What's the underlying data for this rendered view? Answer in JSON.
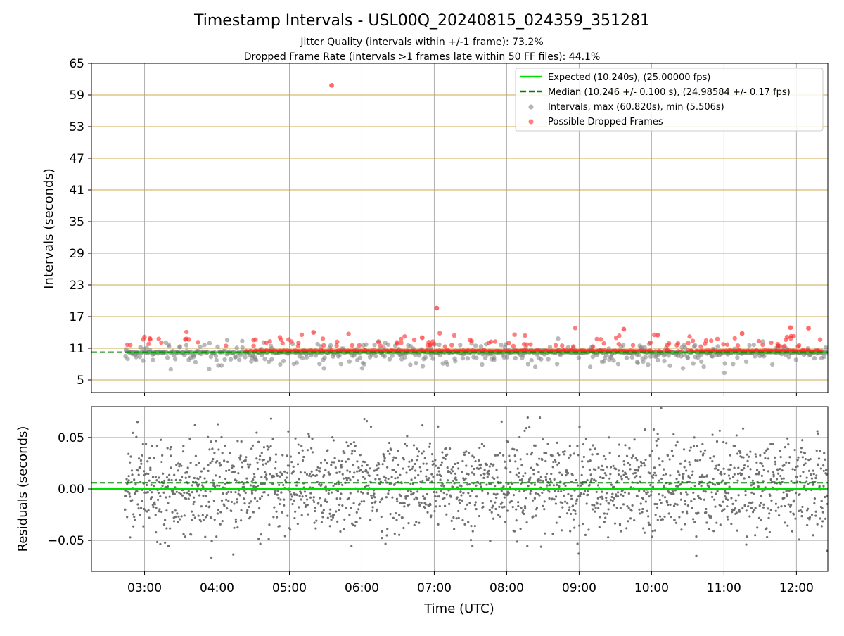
{
  "figure": {
    "title": "Timestamp Intervals - USL00Q_20240815_024359_351281",
    "subtitle_1": "Jitter Quality (intervals within +/-1 frame): 73.2%",
    "subtitle_2": "Dropped Frame Rate (intervals >1 frames late within 50 FF files): 44.1%"
  },
  "chart_data": [
    {
      "type": "scatter",
      "panel": "intervals",
      "ylabel": "Intervals (seconds)",
      "xlabel": "",
      "xlim": [
        "02:16",
        "12:26"
      ],
      "ylim": [
        2.6,
        65
      ],
      "yticks": [
        5,
        11,
        17,
        23,
        29,
        35,
        41,
        47,
        53,
        59,
        65
      ],
      "xticks": [
        "03:00",
        "04:00",
        "05:00",
        "06:00",
        "07:00",
        "08:00",
        "09:00",
        "10:00",
        "11:00",
        "12:00"
      ],
      "x_time_range": [
        "02:44",
        "12:26"
      ],
      "grid": {
        "x": true,
        "y": true,
        "y_color": "#c8a850"
      },
      "legend_position": "top-right",
      "legend": [
        {
          "label": "Expected (10.240s), (25.00000 fps)",
          "style": "solid-line",
          "color": "#00e000"
        },
        {
          "label": "Median (10.246 +/- 0.100 s), (24.98584 +/- 0.17 fps)",
          "style": "dashed-line",
          "color": "#008000"
        },
        {
          "label": "Intervals, max (60.820s), min (5.506s)",
          "style": "marker",
          "color": "#808080"
        },
        {
          "label": "Possible Dropped Frames",
          "style": "marker",
          "color": "#ff2a2a"
        }
      ],
      "series": [
        {
          "name": "Expected (10.240s), (25.00000 fps)",
          "kind": "hline",
          "value": 10.24,
          "color": "#00e000"
        },
        {
          "name": "Median (10.246 +/- 0.100 s), (24.98584 +/- 0.17 fps)",
          "kind": "hline",
          "value": 10.246,
          "color": "#008000"
        },
        {
          "name": "Intervals, max (60.820s), min (5.506s)",
          "kind": "scatter",
          "color": "#808080",
          "max": 60.82,
          "min": 5.506
        },
        {
          "name": "Possible Dropped Frames",
          "kind": "scatter",
          "color": "#ff2a2a",
          "highlighted_points": [
            {
              "x": "05:35",
              "y": 60.82
            },
            {
              "x": "07:02",
              "y": 18.6
            },
            {
              "x": "09:37",
              "y": 14.6
            },
            {
              "x": "11:55",
              "y": 14.9
            },
            {
              "x": "12:10",
              "y": 14.8
            },
            {
              "x": "05:20",
              "y": 14.0
            },
            {
              "x": "10:05",
              "y": 13.5
            },
            {
              "x": "06:50",
              "y": 13.0
            },
            {
              "x": "11:15",
              "y": 13.8
            }
          ]
        }
      ]
    },
    {
      "type": "scatter",
      "panel": "residuals",
      "ylabel": "Residuals (seconds)",
      "xlabel": "Time (UTC)",
      "xlim": [
        "02:16",
        "12:26"
      ],
      "ylim": [
        -0.08,
        0.08
      ],
      "yticks": [
        -0.05,
        0.0,
        0.05
      ],
      "ytick_labels": [
        "−0.05",
        "0.00",
        "0.05"
      ],
      "xticks": [
        "03:00",
        "04:00",
        "05:00",
        "06:00",
        "07:00",
        "08:00",
        "09:00",
        "10:00",
        "11:00",
        "12:00"
      ],
      "grid": {
        "x": true,
        "y": true
      },
      "series": [
        {
          "name": "Expected",
          "kind": "hline",
          "value": 0.0,
          "color": "#00e000"
        },
        {
          "name": "Median",
          "kind": "hline",
          "value": 0.006,
          "color": "#008000"
        },
        {
          "name": "Residuals",
          "kind": "scatter",
          "color": "#707070",
          "spread_sd": 0.025
        }
      ]
    }
  ]
}
